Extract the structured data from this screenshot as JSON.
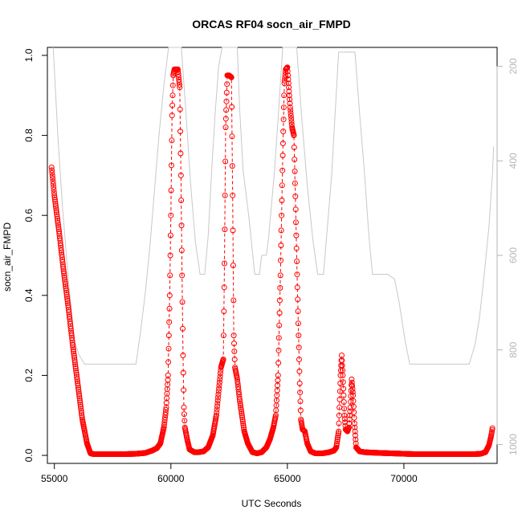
{
  "chart_data": {
    "type": "scatter",
    "title": "ORCAS RF04 socn_air_FMPD",
    "xlabel": "UTC Seconds",
    "ylabel": "socn_air_FMPD",
    "xlim": [
      54700,
      74000
    ],
    "ylim": [
      -0.02,
      1.02
    ],
    "y2lim": [
      1040,
      160
    ],
    "x_ticks": [
      55000,
      60000,
      65000,
      70000
    ],
    "x_tick_labels": [
      "55000",
      "60000",
      "65000",
      "70000"
    ],
    "y_ticks": [
      0.0,
      0.2,
      0.4,
      0.6,
      0.8,
      1.0
    ],
    "y_tick_labels": [
      "0.0",
      "0.2",
      "0.4",
      "0.6",
      "0.8",
      "1.0"
    ],
    "y2_ticks": [
      200,
      400,
      600,
      800,
      1000
    ],
    "y2_tick_labels": [
      "200",
      "400",
      "600",
      "800",
      "1000"
    ],
    "grid": false,
    "legend": "none",
    "series": [
      {
        "axis": "left",
        "style": "open-circles-with-dashed-line",
        "color": "#ff0000",
        "points": [
          [
            54880,
            0.72
          ],
          [
            55000,
            0.65
          ],
          [
            55200,
            0.56
          ],
          [
            55400,
            0.46
          ],
          [
            55600,
            0.37
          ],
          [
            55800,
            0.27
          ],
          [
            56000,
            0.18
          ],
          [
            56200,
            0.09
          ],
          [
            56400,
            0.03
          ],
          [
            56550,
            0.005
          ],
          [
            56700,
            0.003
          ],
          [
            57000,
            0.003
          ],
          [
            57500,
            0.003
          ],
          [
            58000,
            0.003
          ],
          [
            58500,
            0.004
          ],
          [
            58900,
            0.006
          ],
          [
            59200,
            0.012
          ],
          [
            59400,
            0.018
          ],
          [
            59550,
            0.03
          ],
          [
            59700,
            0.07
          ],
          [
            59800,
            0.12
          ],
          [
            59880,
            0.2
          ],
          [
            59950,
            0.4
          ],
          [
            60000,
            0.6
          ],
          [
            60050,
            0.85
          ],
          [
            60100,
            0.95
          ],
          [
            60150,
            0.965
          ],
          [
            60300,
            0.965
          ],
          [
            60380,
            0.92
          ],
          [
            60430,
            0.7
          ],
          [
            60480,
            0.45
          ],
          [
            60520,
            0.25
          ],
          [
            60560,
            0.12
          ],
          [
            60600,
            0.07
          ],
          [
            60700,
            0.04
          ],
          [
            60800,
            0.015
          ],
          [
            61000,
            0.008
          ],
          [
            61200,
            0.008
          ],
          [
            61400,
            0.01
          ],
          [
            61600,
            0.02
          ],
          [
            61800,
            0.05
          ],
          [
            61950,
            0.1
          ],
          [
            62050,
            0.16
          ],
          [
            62150,
            0.22
          ],
          [
            62250,
            0.24
          ],
          [
            62300,
            0.48
          ],
          [
            62350,
            0.82
          ],
          [
            62420,
            0.95
          ],
          [
            62500,
            0.95
          ],
          [
            62600,
            0.945
          ],
          [
            62650,
            0.65
          ],
          [
            62700,
            0.3
          ],
          [
            62750,
            0.22
          ],
          [
            62850,
            0.19
          ],
          [
            62950,
            0.14
          ],
          [
            63050,
            0.1
          ],
          [
            63150,
            0.06
          ],
          [
            63300,
            0.03
          ],
          [
            63500,
            0.008
          ],
          [
            63700,
            0.005
          ],
          [
            63900,
            0.008
          ],
          [
            64100,
            0.02
          ],
          [
            64250,
            0.04
          ],
          [
            64400,
            0.07
          ],
          [
            64500,
            0.1
          ],
          [
            64600,
            0.2
          ],
          [
            64700,
            0.45
          ],
          [
            64800,
            0.75
          ],
          [
            64870,
            0.93
          ],
          [
            64930,
            0.965
          ],
          [
            65000,
            0.97
          ],
          [
            65060,
            0.92
          ],
          [
            65120,
            0.87
          ],
          [
            65200,
            0.82
          ],
          [
            65280,
            0.8
          ],
          [
            65330,
            0.68
          ],
          [
            65380,
            0.55
          ],
          [
            65430,
            0.42
          ],
          [
            65480,
            0.3
          ],
          [
            65530,
            0.18
          ],
          [
            65580,
            0.09
          ],
          [
            65650,
            0.065
          ],
          [
            65750,
            0.06
          ],
          [
            65850,
            0.03
          ],
          [
            66000,
            0.01
          ],
          [
            66200,
            0.005
          ],
          [
            66500,
            0.005
          ],
          [
            66800,
            0.008
          ],
          [
            67000,
            0.012
          ],
          [
            67100,
            0.02
          ],
          [
            67200,
            0.06
          ],
          [
            67280,
            0.2
          ],
          [
            67330,
            0.25
          ],
          [
            67380,
            0.2
          ],
          [
            67450,
            0.1
          ],
          [
            67500,
            0.065
          ],
          [
            67580,
            0.06
          ],
          [
            67640,
            0.07
          ],
          [
            67700,
            0.12
          ],
          [
            67760,
            0.19
          ],
          [
            67820,
            0.15
          ],
          [
            67880,
            0.08
          ],
          [
            67950,
            0.02
          ],
          [
            68100,
            0.01
          ],
          [
            68300,
            0.008
          ],
          [
            68600,
            0.007
          ],
          [
            69000,
            0.006
          ],
          [
            69500,
            0.005
          ],
          [
            70000,
            0.004
          ],
          [
            70500,
            0.003
          ],
          [
            71000,
            0.003
          ],
          [
            71500,
            0.003
          ],
          [
            72000,
            0.003
          ],
          [
            72500,
            0.003
          ],
          [
            73000,
            0.003
          ],
          [
            73300,
            0.004
          ],
          [
            73500,
            0.008
          ],
          [
            73650,
            0.025
          ],
          [
            73750,
            0.05
          ],
          [
            73800,
            0.068
          ]
        ]
      },
      {
        "axis": "right",
        "style": "line",
        "color": "#c8c8c8",
        "points": [
          [
            54950,
            150
          ],
          [
            55150,
            350
          ],
          [
            55350,
            500
          ],
          [
            55600,
            650
          ],
          [
            55850,
            780
          ],
          [
            56050,
            810
          ],
          [
            56300,
            830
          ],
          [
            56800,
            830
          ],
          [
            57500,
            830
          ],
          [
            58200,
            830
          ],
          [
            58500,
            830
          ],
          [
            58700,
            760
          ],
          [
            58900,
            680
          ],
          [
            59100,
            580
          ],
          [
            59300,
            460
          ],
          [
            59500,
            340
          ],
          [
            59700,
            240
          ],
          [
            59900,
            150
          ],
          [
            60450,
            150
          ],
          [
            60650,
            300
          ],
          [
            60850,
            450
          ],
          [
            61050,
            570
          ],
          [
            61250,
            640
          ],
          [
            61450,
            640
          ],
          [
            61600,
            560
          ],
          [
            61750,
            420
          ],
          [
            61900,
            300
          ],
          [
            62050,
            200
          ],
          [
            62200,
            150
          ],
          [
            62850,
            150
          ],
          [
            62950,
            290
          ],
          [
            63100,
            420
          ],
          [
            63350,
            520
          ],
          [
            63600,
            640
          ],
          [
            63800,
            640
          ],
          [
            63900,
            600
          ],
          [
            64100,
            600
          ],
          [
            64200,
            560
          ],
          [
            64450,
            420
          ],
          [
            64600,
            310
          ],
          [
            64800,
            160
          ],
          [
            65400,
            160
          ],
          [
            65600,
            300
          ],
          [
            65850,
            450
          ],
          [
            66100,
            570
          ],
          [
            66300,
            640
          ],
          [
            66550,
            640
          ],
          [
            66700,
            550
          ],
          [
            66900,
            430
          ],
          [
            67050,
            300
          ],
          [
            67200,
            170
          ],
          [
            67900,
            170
          ],
          [
            68100,
            300
          ],
          [
            68300,
            420
          ],
          [
            68500,
            560
          ],
          [
            68650,
            640
          ],
          [
            68900,
            640
          ],
          [
            69300,
            640
          ],
          [
            69600,
            650
          ],
          [
            69800,
            700
          ],
          [
            70050,
            780
          ],
          [
            70250,
            830
          ],
          [
            70800,
            830
          ],
          [
            71500,
            830
          ],
          [
            72200,
            830
          ],
          [
            72800,
            830
          ],
          [
            73050,
            790
          ],
          [
            73250,
            730
          ],
          [
            73450,
            640
          ],
          [
            73650,
            540
          ],
          [
            73800,
            430
          ],
          [
            73850,
            370
          ]
        ]
      }
    ]
  }
}
